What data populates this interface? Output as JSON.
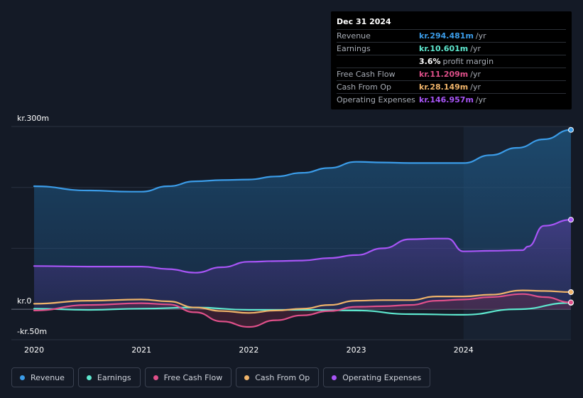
{
  "tooltip": {
    "date": "Dec 31 2024",
    "rows": [
      {
        "label": "Revenue",
        "value": "kr.294.481m",
        "unit": "/yr",
        "color": "#3b9ce8"
      },
      {
        "label": "Earnings",
        "value": "kr.10.601m",
        "unit": "/yr",
        "color": "#5ee8cf"
      },
      {
        "label": "",
        "value": "3.6%",
        "unit": "profit margin",
        "color": "#ffffff"
      },
      {
        "label": "Free Cash Flow",
        "value": "kr.11.209m",
        "unit": "/yr",
        "color": "#e0508a"
      },
      {
        "label": "Cash From Op",
        "value": "kr.28.149m",
        "unit": "/yr",
        "color": "#f0b46a"
      },
      {
        "label": "Operating Expenses",
        "value": "kr.146.957m",
        "unit": "/yr",
        "color": "#a855f7"
      }
    ]
  },
  "chart_data": {
    "type": "area",
    "title": "",
    "ylabel_top": "kr.300m",
    "ylabel_zero": "kr.0",
    "ylabel_bottom": "-kr.50m",
    "ylim": [
      -50,
      300
    ],
    "xlim": [
      2020,
      2025
    ],
    "x_ticks": [
      {
        "label": "2020",
        "value": 2020
      },
      {
        "label": "2021",
        "value": 2021
      },
      {
        "label": "2022",
        "value": 2022
      },
      {
        "label": "2023",
        "value": 2023
      },
      {
        "label": "2024",
        "value": 2024
      }
    ],
    "forecast_start": 2024,
    "series": [
      {
        "name": "Revenue",
        "color": "#3b9ce8",
        "fill": true,
        "x": [
          2020,
          2020.5,
          2020.9,
          2021.0,
          2021.25,
          2021.5,
          2021.75,
          2022.0,
          2022.25,
          2022.5,
          2022.75,
          2023.0,
          2023.25,
          2023.5,
          2023.75,
          2024.0,
          2024.25,
          2024.5,
          2024.75,
          2025.0
        ],
        "values": [
          202,
          195,
          193,
          193,
          202,
          210,
          212,
          213,
          218,
          224,
          232,
          242,
          241,
          240,
          240,
          240,
          253,
          265,
          279,
          294.481
        ]
      },
      {
        "name": "Operating Expenses",
        "color": "#a855f7",
        "fill": true,
        "x": [
          2020,
          2020.5,
          2021.0,
          2021.25,
          2021.5,
          2021.75,
          2022.0,
          2022.25,
          2022.5,
          2022.75,
          2023.0,
          2023.25,
          2023.5,
          2023.75,
          2023.85,
          2024.0,
          2024.25,
          2024.55,
          2024.6,
          2024.75,
          2025.0
        ],
        "values": [
          71,
          70,
          70,
          66,
          60,
          69,
          78,
          79,
          80,
          84,
          89,
          100,
          115,
          116,
          116,
          95,
          96,
          97,
          103,
          137,
          146.957
        ]
      },
      {
        "name": "Earnings",
        "color": "#5ee8cf",
        "fill": false,
        "x": [
          2020,
          2020.5,
          2021.0,
          2021.5,
          2022.0,
          2022.5,
          2023.0,
          2023.5,
          2024.0,
          2024.5,
          2025.0
        ],
        "values": [
          1,
          -1,
          1,
          3,
          -1,
          -1,
          -2,
          -8,
          -9,
          0,
          10.601
        ]
      },
      {
        "name": "Free Cash Flow",
        "color": "#e0508a",
        "fill": false,
        "x": [
          2020,
          2020.5,
          2021.0,
          2021.25,
          2021.5,
          2021.75,
          2022.0,
          2022.25,
          2022.5,
          2022.75,
          2023.0,
          2023.25,
          2023.5,
          2023.75,
          2024.0,
          2024.25,
          2024.55,
          2024.75,
          2025.0
        ],
        "values": [
          -2,
          7,
          10,
          8,
          -5,
          -20,
          -29,
          -18,
          -10,
          -3,
          4,
          5,
          7,
          14,
          16,
          20,
          25,
          20,
          11.209
        ]
      },
      {
        "name": "Cash From Op",
        "color": "#f0b46a",
        "fill": false,
        "x": [
          2020,
          2020.5,
          2021.0,
          2021.25,
          2021.5,
          2021.75,
          2022.0,
          2022.25,
          2022.5,
          2022.75,
          2023.0,
          2023.25,
          2023.5,
          2023.75,
          2024.0,
          2024.25,
          2024.55,
          2024.75,
          2025.0
        ],
        "values": [
          9,
          14,
          16,
          13,
          3,
          -3,
          -6,
          -2,
          1,
          7,
          14,
          15,
          15,
          21,
          21,
          24,
          31,
          30,
          28.149
        ]
      }
    ]
  },
  "legend": [
    {
      "label": "Revenue",
      "color": "#3b9ce8"
    },
    {
      "label": "Earnings",
      "color": "#5ee8cf"
    },
    {
      "label": "Free Cash Flow",
      "color": "#e0508a"
    },
    {
      "label": "Cash From Op",
      "color": "#f0b46a"
    },
    {
      "label": "Operating Expenses",
      "color": "#a855f7"
    }
  ]
}
